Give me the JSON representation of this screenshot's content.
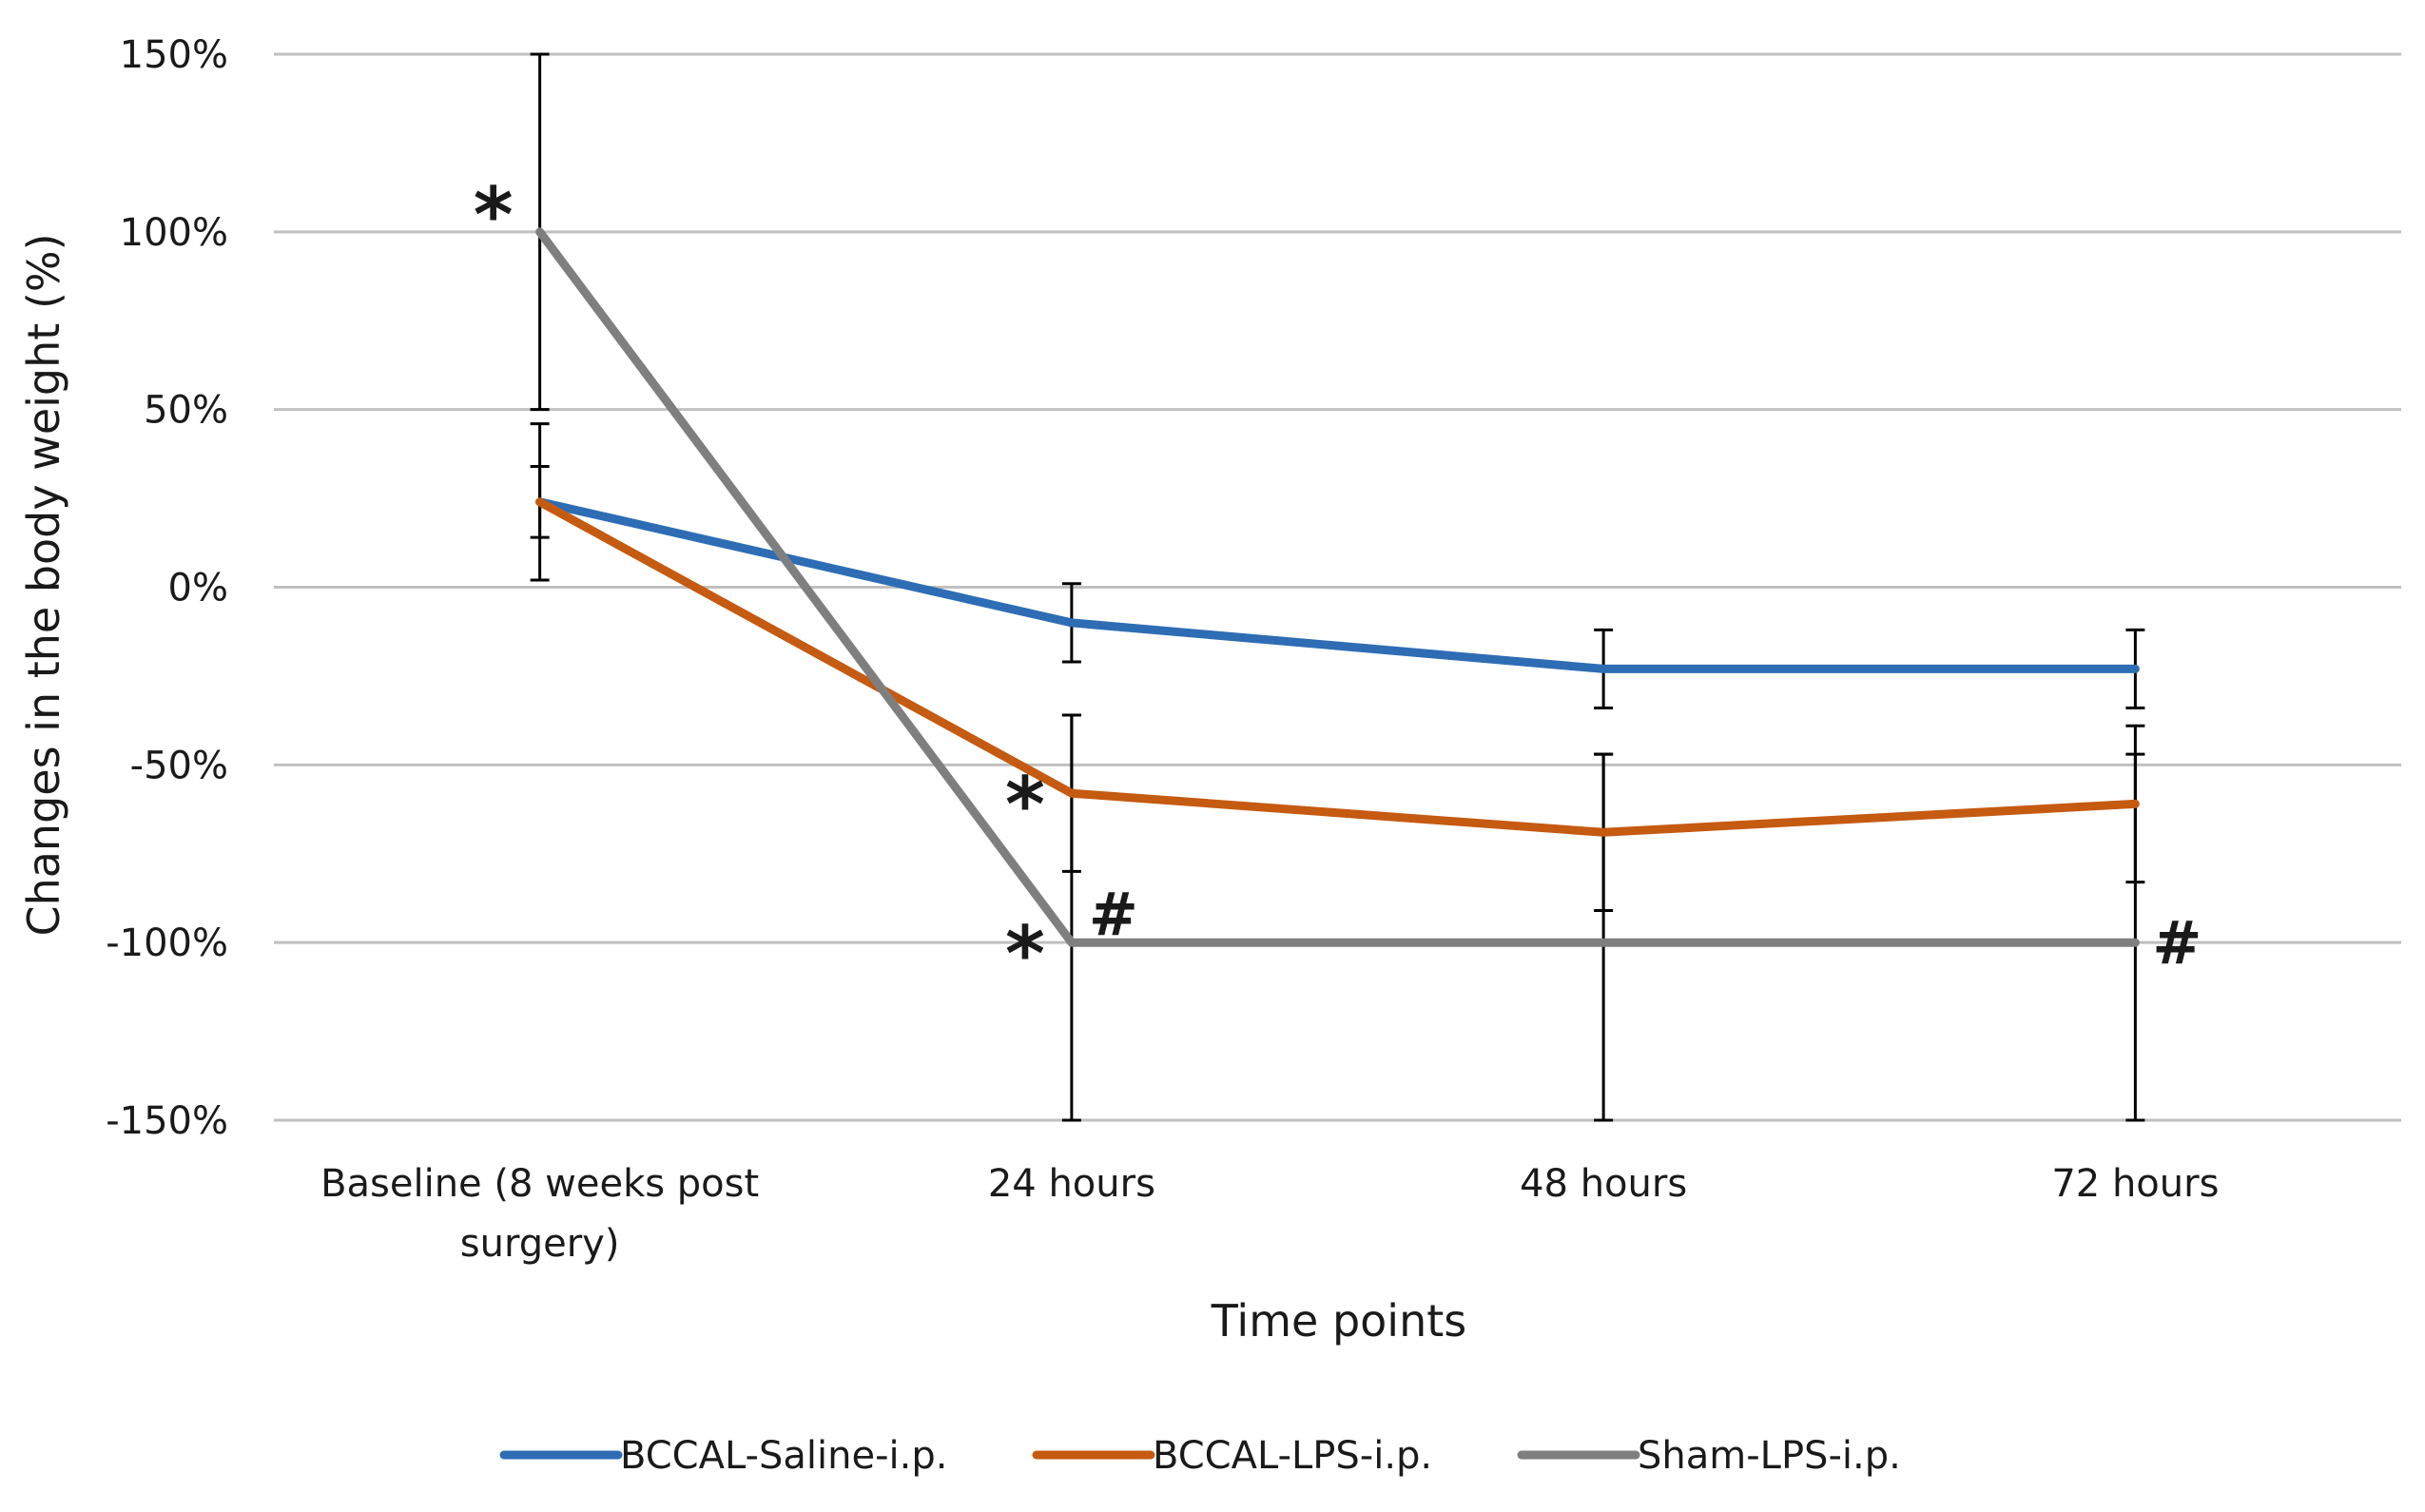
{
  "chart_data": {
    "type": "line",
    "title": "",
    "xlabel": "Time points",
    "ylabel": "Changes in the body weight (%)",
    "ylim": [
      -150,
      150
    ],
    "yticks": [
      150,
      100,
      50,
      0,
      -50,
      -100,
      -150
    ],
    "ytick_labels": [
      "150%",
      "100%",
      "50%",
      "0%",
      "-50%",
      "-100%",
      "-150%"
    ],
    "categories": [
      [
        "Baseline (8 weeks post",
        "surgery)"
      ],
      [
        "24 hours"
      ],
      [
        "48 hours"
      ],
      [
        "72 hours"
      ]
    ],
    "grid": true,
    "legend_position": "bottom",
    "series": [
      {
        "name": "BCCAL-Saline-i.p.",
        "color": "#2E6DB4",
        "values": [
          24,
          -10,
          -23,
          -23
        ],
        "errors": [
          22,
          11,
          11,
          11
        ]
      },
      {
        "name": "BCCAL-LPS-i.p.",
        "color": "#C55A11",
        "values": [
          24,
          -58,
          -69,
          -61
        ],
        "errors": [
          10,
          22,
          22,
          22
        ]
      },
      {
        "name": "Sham-LPS-i.p.",
        "color": "#7F7F7F",
        "values": [
          100,
          -100,
          -100,
          -100
        ],
        "errors": [
          50,
          64,
          53,
          53
        ]
      }
    ],
    "annotations": [
      {
        "text": "*",
        "category": 0,
        "value": 100,
        "side": "left"
      },
      {
        "text": "*",
        "category": 1,
        "value": -58,
        "side": "left"
      },
      {
        "text": "*",
        "category": 1,
        "value": -100,
        "side": "left"
      },
      {
        "text": "#",
        "category": 1,
        "value": -100,
        "side": "right"
      },
      {
        "text": "#",
        "category": 3,
        "value": -100,
        "side": "right"
      }
    ]
  }
}
